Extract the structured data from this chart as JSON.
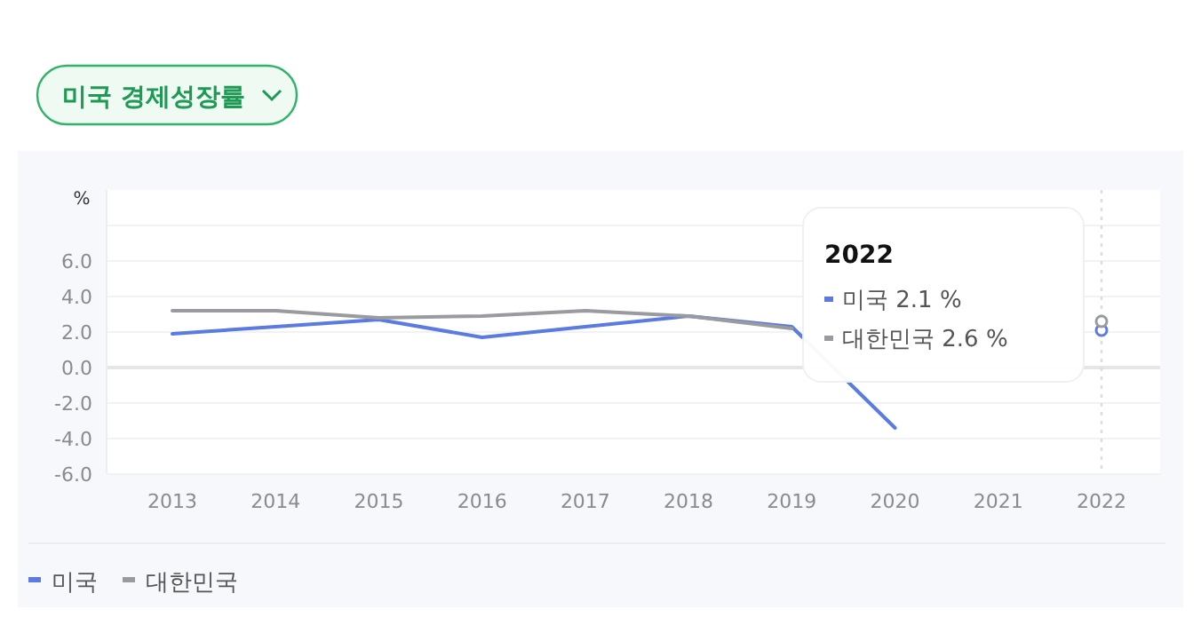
{
  "chart_data": {
    "type": "line",
    "title": "미국 경제성장률",
    "ylabel": "%",
    "categories": [
      "2013",
      "2014",
      "2015",
      "2016",
      "2017",
      "2018",
      "2019",
      "2020",
      "2021",
      "2022"
    ],
    "series": [
      {
        "name": "미국",
        "color": "#5b7be0",
        "values": [
          1.9,
          2.3,
          2.7,
          1.7,
          2.3,
          2.9,
          2.3,
          -3.4,
          null,
          2.1
        ]
      },
      {
        "name": "대한민국",
        "color": "#9a9ba0",
        "values": [
          3.2,
          3.2,
          2.8,
          2.9,
          3.2,
          2.9,
          2.2,
          null,
          null,
          2.6
        ]
      }
    ],
    "ylim": [
      -6,
      10
    ],
    "yticks": [
      {
        "value": -6,
        "label": "-6.0"
      },
      {
        "value": -4,
        "label": "-4.0"
      },
      {
        "value": -2,
        "label": "-2.0"
      },
      {
        "value": 0,
        "label": "0.0"
      },
      {
        "value": 2,
        "label": "2.0"
      },
      {
        "value": 4,
        "label": "4.0"
      },
      {
        "value": 6,
        "label": "6.0"
      },
      {
        "value": 8,
        "label": null
      }
    ],
    "ref_lines": [
      {
        "axis": "x",
        "value": "2022",
        "line_style": "dotted",
        "color": "#dddddd"
      }
    ],
    "annotations": [
      "2022",
      "미국 2.1 %",
      "대한민국 2.6 %"
    ],
    "grid": "y",
    "legend": "bottom left",
    "marker": "none",
    "line_style": "solid"
  }
}
